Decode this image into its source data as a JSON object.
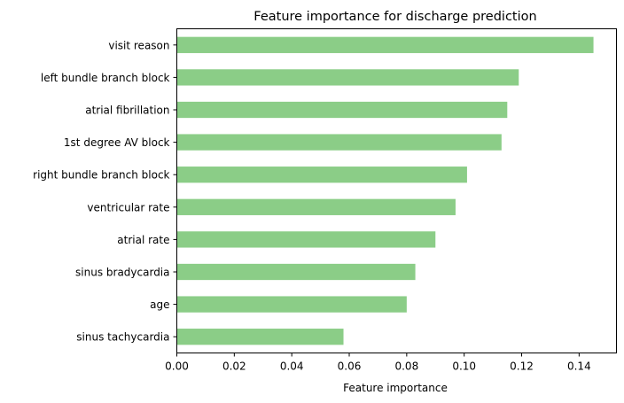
{
  "chart_data": {
    "type": "bar",
    "orientation": "horizontal",
    "title": "Feature importance for discharge prediction",
    "xlabel": "Feature importance",
    "ylabel": "",
    "bar_color": "#8bcd87",
    "xlim": [
      0,
      0.153
    ],
    "xticks": [
      0.0,
      0.02,
      0.04,
      0.06,
      0.08,
      0.1,
      0.12,
      0.14
    ],
    "xtick_labels": [
      "0.00",
      "0.02",
      "0.04",
      "0.06",
      "0.08",
      "0.10",
      "0.12",
      "0.14"
    ],
    "grid": false,
    "legend": "none",
    "categories": [
      "visit reason",
      "left bundle branch block",
      "atrial fibrillation",
      "1st degree AV block",
      "right bundle branch block",
      "ventricular rate",
      "atrial rate",
      "sinus bradycardia",
      "age",
      "sinus tachycardia"
    ],
    "values": [
      0.145,
      0.119,
      0.115,
      0.113,
      0.101,
      0.097,
      0.09,
      0.083,
      0.08,
      0.058
    ]
  }
}
